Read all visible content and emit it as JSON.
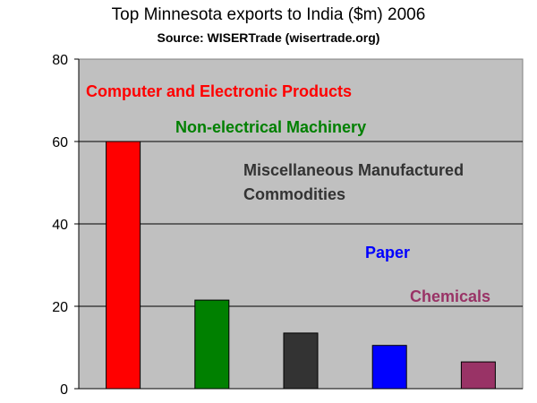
{
  "chart_data": {
    "type": "bar",
    "title": "Top Minnesota exports to India ($m) 2006",
    "subtitle": "Source: WISERTrade (wisertrade.org)",
    "categories": [
      "Computer and Electronic Products",
      "Non-electrical Machinery",
      "Miscellaneous Manufactured Commodities",
      "Paper",
      "Chemicals"
    ],
    "category_label_lines": [
      [
        "Computer and Electronic Products"
      ],
      [
        "Non-electrical Machinery"
      ],
      [
        "Miscellaneous Manufactured",
        "Commodities"
      ],
      [
        "Paper"
      ],
      [
        "Chemicals"
      ]
    ],
    "values": [
      60,
      21.5,
      13.5,
      10.5,
      6.5
    ],
    "colors": [
      "#ff0000",
      "#008000",
      "#333333",
      "#0000ff",
      "#993366"
    ],
    "ylim": [
      0,
      80
    ],
    "yticks": [
      "0",
      "20",
      "40",
      "60",
      "80"
    ],
    "grid": true,
    "plot_background": "#c0c0c0"
  }
}
